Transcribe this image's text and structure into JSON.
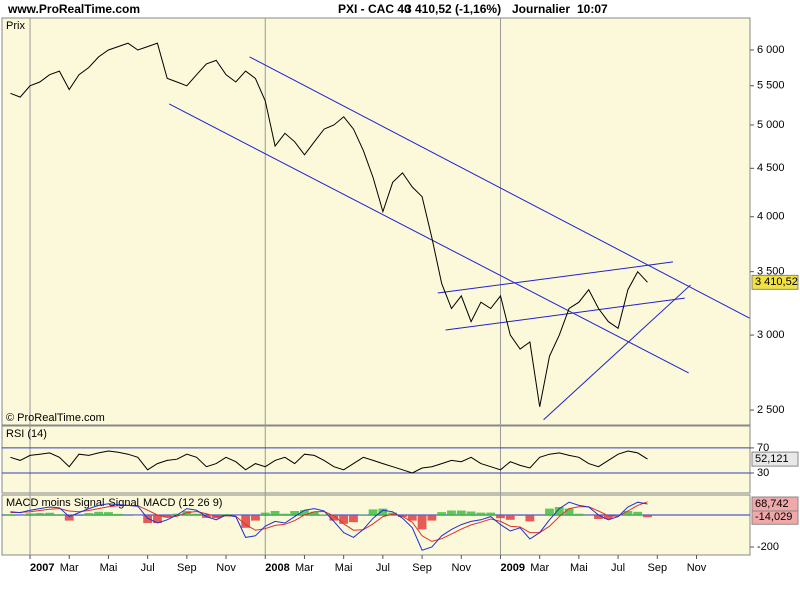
{
  "header": {
    "site": "www.ProRealTime.com",
    "instrument": "PXI - CAC 40",
    "quote": "3 410,52 (-1,16%)",
    "period": "Journalier",
    "time": "10:07"
  },
  "chart_data": [
    {
      "type": "line",
      "title": "Prix",
      "note": "© ProRealTime.com",
      "x": [
        -1,
        -0.5,
        0,
        0.5,
        1,
        1.5,
        2,
        2.5,
        3,
        3.5,
        4,
        4.5,
        5,
        5.5,
        6,
        6.5,
        7,
        7.5,
        8,
        8.5,
        9,
        9.5,
        10,
        10.5,
        11,
        11.5,
        12,
        12.5,
        13,
        13.5,
        14,
        14.5,
        15,
        15.5,
        16,
        16.5,
        17,
        17.5,
        18,
        18.5,
        19,
        19.5,
        20,
        20.5,
        21,
        21.5,
        22,
        22.5,
        23,
        23.5,
        24,
        24.5,
        25,
        25.5,
        26,
        26.5,
        27,
        27.5,
        28,
        28.5,
        29,
        29.5,
        30,
        30.5,
        31,
        31.5
      ],
      "xlim": [
        -1.43,
        36.73
      ],
      "xticks": [
        {
          "value": 0,
          "label": "2007"
        },
        {
          "value": 2,
          "label": "Mar"
        },
        {
          "value": 4,
          "label": "Mai"
        },
        {
          "value": 6,
          "label": "Jul"
        },
        {
          "value": 8,
          "label": "Sep"
        },
        {
          "value": 10,
          "label": "Nov"
        },
        {
          "value": 12,
          "label": "2008"
        },
        {
          "value": 14,
          "label": "Mar"
        },
        {
          "value": 16,
          "label": "Mai"
        },
        {
          "value": 18,
          "label": "Jul"
        },
        {
          "value": 20,
          "label": "Sep"
        },
        {
          "value": 22,
          "label": "Nov"
        },
        {
          "value": 24,
          "label": "2009"
        },
        {
          "value": 26,
          "label": "Mar"
        },
        {
          "value": 28,
          "label": "Mai"
        },
        {
          "value": 30,
          "label": "Jul"
        },
        {
          "value": 32,
          "label": "Sep"
        },
        {
          "value": 34,
          "label": "Nov"
        }
      ],
      "log_scale": true,
      "ylim": [
        2411,
        6485
      ],
      "yticks": [
        {
          "value": 2500,
          "label": "2 500"
        },
        {
          "value": 3000,
          "label": "3 000"
        },
        {
          "value": 3500,
          "label": "3 500"
        },
        {
          "value": 4000,
          "label": "4 000"
        },
        {
          "value": 4500,
          "label": "4 500"
        },
        {
          "value": 5000,
          "label": "5 000"
        },
        {
          "value": 5500,
          "label": "5 500"
        },
        {
          "value": 6000,
          "label": "6 000"
        }
      ],
      "grid": false,
      "color": "#000000",
      "label_color": "#f0e040",
      "values": [
        5400,
        5350,
        5500,
        5550,
        5650,
        5700,
        5450,
        5650,
        5750,
        5900,
        6000,
        6050,
        6100,
        6000,
        6050,
        6100,
        5600,
        5550,
        5500,
        5650,
        5800,
        5850,
        5650,
        5550,
        5700,
        5600,
        5300,
        4750,
        4900,
        4800,
        4650,
        4800,
        4950,
        5000,
        5100,
        4950,
        4700,
        4400,
        4050,
        4350,
        4450,
        4300,
        4200,
        3800,
        3400,
        3200,
        3300,
        3100,
        3250,
        3200,
        3300,
        3000,
        2900,
        2950,
        2520,
        2850,
        3000,
        3200,
        3250,
        3350,
        3200,
        3100,
        3050,
        3350,
        3500,
        3410.52
      ],
      "value_labels": [
        null,
        null,
        null,
        null,
        null,
        null,
        null,
        null,
        null,
        null,
        null,
        null,
        null,
        null,
        null,
        null,
        null,
        null,
        null,
        null,
        null,
        null,
        null,
        null,
        null,
        null,
        null,
        null,
        null,
        null,
        null,
        null,
        null,
        null,
        null,
        null,
        null,
        null,
        null,
        null,
        null,
        null,
        null,
        null,
        null,
        null,
        null,
        null,
        null,
        null,
        null,
        null,
        null,
        null,
        null,
        null,
        null,
        null,
        null,
        null,
        null,
        null,
        null,
        null,
        null,
        "3 410,52"
      ],
      "trend_color": "#2020d0",
      "trend_lines": [
        {
          "x": [
            11.2,
            36.7
          ],
          "y": [
            5900,
            3127
          ]
        },
        {
          "x": [
            7.1,
            33.6
          ],
          "y": [
            5262,
            2736
          ]
        },
        {
          "x": [
            20.8,
            32.8
          ],
          "y": [
            3323,
            3584
          ]
        },
        {
          "x": [
            21.2,
            33.4
          ],
          "y": [
            3037,
            3282
          ]
        },
        {
          "x": [
            26.2,
            33.7
          ],
          "y": [
            2442,
            3389
          ]
        }
      ]
    },
    {
      "type": "line",
      "title": "RSI (14)",
      "ylim": [
        -2,
        105
      ],
      "yticks": [
        30,
        70
      ],
      "grid": true,
      "grid_color": "#3040c0",
      "color": "#000000",
      "label_color": "#e8e8e8",
      "values": [
        55,
        50,
        58,
        60,
        62,
        55,
        40,
        60,
        58,
        62,
        65,
        63,
        60,
        55,
        35,
        45,
        50,
        52,
        60,
        55,
        40,
        45,
        55,
        48,
        35,
        45,
        40,
        50,
        55,
        45,
        60,
        58,
        50,
        40,
        35,
        45,
        55,
        50,
        45,
        40,
        35,
        30,
        38,
        40,
        45,
        50,
        48,
        55,
        45,
        40,
        35,
        48,
        42,
        38,
        55,
        60,
        62,
        58,
        55,
        45,
        40,
        50,
        60,
        65,
        62,
        52.121
      ],
      "value_labels": [
        null,
        null,
        null,
        null,
        null,
        null,
        null,
        null,
        null,
        null,
        null,
        null,
        null,
        null,
        null,
        null,
        null,
        null,
        null,
        null,
        null,
        null,
        null,
        null,
        null,
        null,
        null,
        null,
        null,
        null,
        null,
        null,
        null,
        null,
        null,
        null,
        null,
        null,
        null,
        null,
        null,
        null,
        null,
        null,
        null,
        null,
        null,
        null,
        null,
        null,
        null,
        null,
        null,
        null,
        null,
        null,
        null,
        null,
        null,
        null,
        null,
        null,
        null,
        null,
        null,
        "52,121"
      ]
    },
    {
      "type": "combo",
      "ylim": [
        -250,
        125
      ],
      "yticks": [
        -200
      ],
      "grid": false,
      "label_color": "#f0a8a8",
      "series": [
        {
          "name": "MACD moins Signal",
          "type": "bar",
          "color": "#e04040",
          "positive_color": "#40c040",
          "values": [
            5,
            -1,
            10,
            12,
            14,
            5,
            -35,
            -5,
            12,
            20,
            18,
            7,
            0,
            -3,
            -50,
            -50,
            -15,
            8,
            25,
            8,
            -18,
            -20,
            5,
            -2,
            -80,
            -35,
            15,
            25,
            8,
            25,
            30,
            20,
            3,
            -35,
            -55,
            -45,
            2,
            35,
            40,
            15,
            -12,
            -35,
            -90,
            -35,
            18,
            28,
            28,
            22,
            15,
            15,
            -20,
            -30,
            -5,
            -40,
            0,
            40,
            50,
            40,
            8,
            -1,
            -25,
            -25,
            -2,
            25,
            20,
            -14.029
          ],
          "value_labels": [
            null,
            null,
            null,
            null,
            null,
            null,
            null,
            null,
            null,
            null,
            null,
            null,
            null,
            null,
            null,
            null,
            null,
            null,
            null,
            null,
            null,
            null,
            null,
            null,
            null,
            null,
            null,
            null,
            null,
            null,
            null,
            null,
            null,
            null,
            null,
            null,
            null,
            null,
            null,
            null,
            null,
            null,
            null,
            null,
            null,
            null,
            null,
            null,
            null,
            null,
            null,
            null,
            null,
            null,
            null,
            null,
            null,
            null,
            null,
            null,
            null,
            null,
            null,
            null,
            null,
            "-14,029"
          ]
        },
        {
          "name": "Signal",
          "type": "line",
          "color": "#e03030",
          "values": [
            15,
            16,
            20,
            28,
            36,
            40,
            25,
            20,
            28,
            40,
            52,
            58,
            60,
            58,
            30,
            0,
            -15,
            -8,
            15,
            22,
            8,
            -10,
            -5,
            -8,
            -60,
            -95,
            -85,
            -65,
            -58,
            -35,
            0,
            20,
            22,
            -5,
            -55,
            -95,
            -92,
            -55,
            -10,
            5,
            -8,
            -45,
            -130,
            -165,
            -148,
            -118,
            -88,
            -62,
            -45,
            -25,
            -40,
            -70,
            -75,
            -110,
            -110,
            -70,
            -10,
            40,
            52,
            51,
            25,
            -5,
            -8,
            25,
            60,
            82.771
          ]
        },
        {
          "name": "MACD (12 26 9)",
          "type": "line",
          "color": "#2030d0",
          "values": [
            20,
            15,
            30,
            40,
            50,
            45,
            -10,
            15,
            40,
            60,
            70,
            65,
            60,
            55,
            -20,
            -50,
            -30,
            0,
            40,
            30,
            -10,
            -30,
            0,
            -10,
            -140,
            -130,
            -70,
            -40,
            -50,
            -10,
            30,
            40,
            25,
            -40,
            -110,
            -140,
            -90,
            -20,
            30,
            20,
            -20,
            -80,
            -220,
            -200,
            -130,
            -90,
            -60,
            -40,
            -30,
            -10,
            -60,
            -100,
            -80,
            -150,
            -110,
            -30,
            40,
            80,
            60,
            50,
            0,
            -30,
            -10,
            50,
            80,
            68.742
          ],
          "value_labels": [
            null,
            null,
            null,
            null,
            null,
            null,
            null,
            null,
            null,
            null,
            null,
            null,
            null,
            null,
            null,
            null,
            null,
            null,
            null,
            null,
            null,
            null,
            null,
            null,
            null,
            null,
            null,
            null,
            null,
            null,
            null,
            null,
            null,
            null,
            null,
            null,
            null,
            null,
            null,
            null,
            null,
            null,
            null,
            null,
            null,
            null,
            null,
            null,
            null,
            null,
            null,
            null,
            null,
            null,
            null,
            null,
            null,
            null,
            null,
            null,
            null,
            null,
            null,
            null,
            null,
            "68,742"
          ]
        }
      ]
    }
  ]
}
